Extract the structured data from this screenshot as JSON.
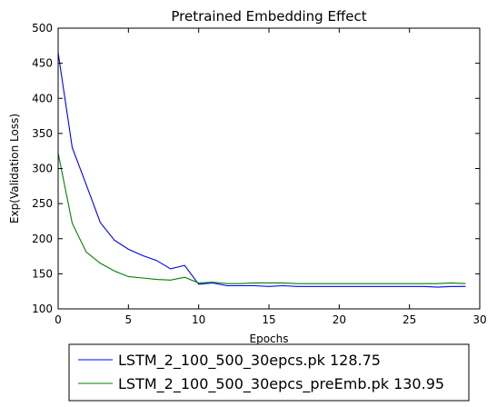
{
  "chart_data": {
    "type": "line",
    "title": "Pretrained Embedding Effect",
    "xlabel": "Epochs",
    "ylabel": "Exp(Validation Loss)",
    "xlim": [
      0,
      30
    ],
    "ylim": [
      100,
      500
    ],
    "xticks": [
      0,
      5,
      10,
      15,
      20,
      25,
      30
    ],
    "yticks": [
      100,
      150,
      200,
      250,
      300,
      350,
      400,
      450,
      500
    ],
    "grid": false,
    "legend_position": "bottom, outside plot",
    "series": [
      {
        "name": "LSTM_2_100_500_30epcs.pk 128.75",
        "color": "#0000ff",
        "x": [
          0,
          1,
          2,
          3,
          4,
          5,
          6,
          7,
          8,
          9,
          10,
          11,
          12,
          13,
          14,
          15,
          16,
          17,
          18,
          19,
          20,
          21,
          22,
          23,
          24,
          25,
          26,
          27,
          28,
          29
        ],
        "values": [
          465,
          330,
          277,
          223,
          198,
          185,
          176,
          169,
          157,
          162,
          135,
          137,
          133,
          133,
          133,
          132,
          133,
          132,
          132,
          132,
          132,
          132,
          132,
          132,
          132,
          132,
          132,
          131,
          132,
          132
        ]
      },
      {
        "name": "LSTM_2_100_500_30epcs_preEmb.pk 130.95",
        "color": "#008000",
        "x": [
          0,
          1,
          2,
          3,
          4,
          5,
          6,
          7,
          8,
          9,
          10,
          11,
          12,
          13,
          14,
          15,
          16,
          17,
          18,
          19,
          20,
          21,
          22,
          23,
          24,
          25,
          26,
          27,
          28,
          29
        ],
        "values": [
          322,
          222,
          181,
          165,
          154,
          146,
          144,
          142,
          141,
          145,
          137,
          138,
          136,
          136,
          137,
          137,
          137,
          136,
          136,
          136,
          136,
          136,
          136,
          136,
          136,
          136,
          136,
          136,
          137,
          136
        ]
      }
    ]
  }
}
